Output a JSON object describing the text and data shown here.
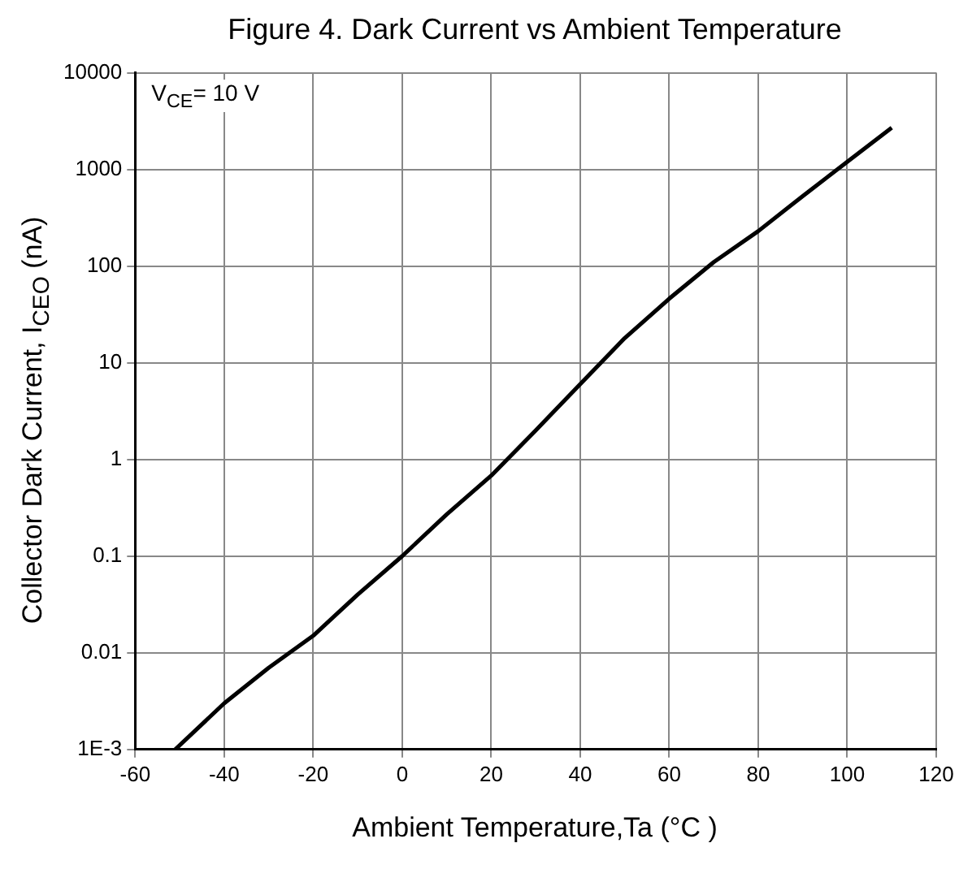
{
  "chart_data": {
    "type": "line",
    "title": "Figure 4. Dark Current vs Ambient Temperature",
    "xlabel": "Ambient Temperature,Ta (°C )",
    "ylabel": "Collector Dark Current, I$_{CEO}$ (nA)",
    "annotations": [
      "V$_{CE}$= 10 V"
    ],
    "x": [
      -51,
      -40,
      -30,
      -20,
      -10,
      0,
      10,
      20,
      30,
      40,
      50,
      60,
      70,
      80,
      90,
      100,
      110
    ],
    "series": [
      {
        "color": "#000000",
        "values": [
          0.001,
          0.003,
          0.007,
          0.015,
          0.04,
          0.1,
          0.27,
          0.68,
          2,
          6,
          18,
          46,
          110,
          230,
          530,
          1200,
          2700
        ]
      }
    ],
    "xlim": [
      -60,
      120
    ],
    "xticks": [
      -60,
      -40,
      -20,
      0,
      20,
      40,
      60,
      80,
      100,
      120
    ],
    "ylim": [
      0.001,
      10000
    ],
    "yticks": [
      {
        "value": 0.001,
        "label": "1E-3"
      },
      0.01,
      0.1,
      1,
      10,
      100,
      1000,
      10000
    ],
    "log": "y",
    "grid": true,
    "marker": "none",
    "line_style": "solid"
  }
}
